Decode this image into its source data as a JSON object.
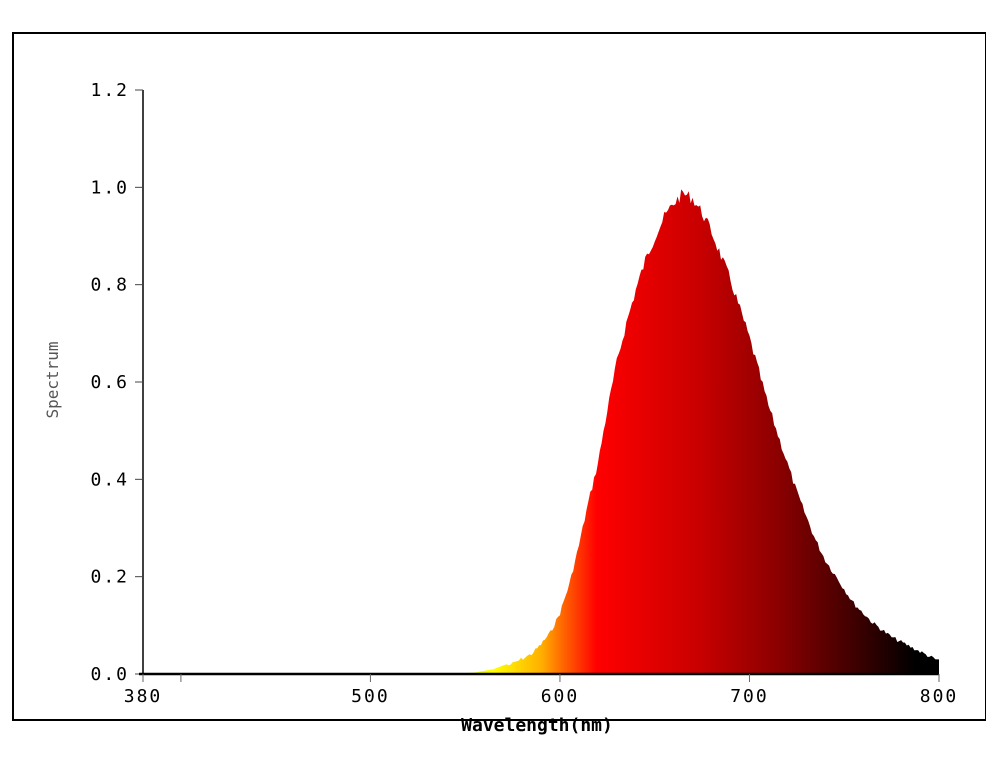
{
  "chart_data": {
    "type": "area",
    "title": "",
    "xlabel": "Wavelength(nm)",
    "ylabel": "Spectrum",
    "xlim": [
      380,
      800
    ],
    "ylim": [
      0.0,
      1.2
    ],
    "grid": false,
    "legend": null,
    "x_ticks": [
      380,
      400,
      500,
      600,
      700,
      800
    ],
    "x_tick_labels": [
      "380",
      "",
      "500",
      "600",
      "700",
      "800"
    ],
    "y_ticks": [
      0.0,
      0.2,
      0.4,
      0.6,
      0.8,
      1.0,
      1.2
    ],
    "y_tick_labels": [
      "0.0",
      "0.2",
      "0.4",
      "0.6",
      "0.8",
      "1.0",
      "1.2"
    ],
    "fill": "wavelength-colored gradient (yellow → orange → red → black)",
    "x": [
      380,
      540,
      555,
      565,
      575,
      585,
      590,
      595,
      600,
      605,
      610,
      615,
      620,
      625,
      630,
      635,
      640,
      645,
      650,
      655,
      660,
      665,
      670,
      675,
      680,
      685,
      690,
      695,
      700,
      705,
      710,
      715,
      720,
      725,
      730,
      735,
      740,
      745,
      750,
      755,
      760,
      765,
      770,
      775,
      780,
      785,
      790,
      795,
      800
    ],
    "values": [
      0.0,
      0.0,
      0.003,
      0.01,
      0.025,
      0.045,
      0.065,
      0.09,
      0.13,
      0.19,
      0.27,
      0.36,
      0.44,
      0.55,
      0.65,
      0.73,
      0.8,
      0.86,
      0.91,
      0.95,
      0.98,
      1.0,
      0.99,
      0.96,
      0.92,
      0.87,
      0.82,
      0.76,
      0.7,
      0.63,
      0.56,
      0.5,
      0.44,
      0.38,
      0.33,
      0.28,
      0.24,
      0.21,
      0.18,
      0.15,
      0.13,
      0.11,
      0.095,
      0.08,
      0.07,
      0.06,
      0.05,
      0.04,
      0.03
    ],
    "peak": {
      "x": 665,
      "y": 1.0
    }
  },
  "axes": {
    "x_title": "Wavelength(nm)",
    "y_title": "Spectrum"
  }
}
